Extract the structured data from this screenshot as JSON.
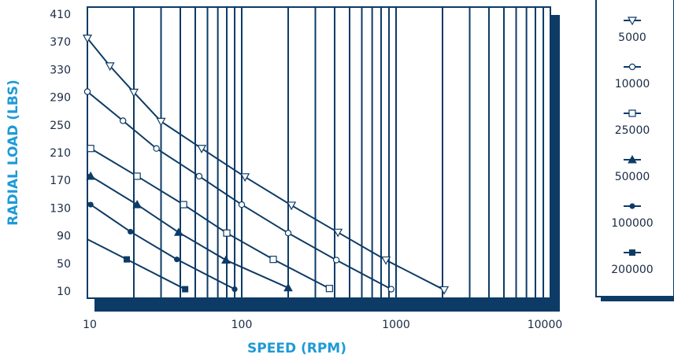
{
  "colors": {
    "line": "#0d3b66",
    "shadow": "#0d3b66",
    "title": "#1e9ad6",
    "text": "#1a2a44"
  },
  "chart_data": {
    "type": "line",
    "xlabel": "SPEED (RPM)",
    "ylabel": "RADIAL LOAD (LBS)",
    "x_scale": "log",
    "xlim": [
      10,
      10000
    ],
    "ylim": [
      0,
      420
    ],
    "x_ticks": [
      "10",
      "100",
      "1000",
      "10000"
    ],
    "y_ticks": [
      "10",
      "50",
      "90",
      "130",
      "170",
      "210",
      "250",
      "290",
      "330",
      "370",
      "410"
    ],
    "grid": "vertical",
    "legend_position": "right",
    "series": [
      {
        "name": "5000",
        "marker": "triangle-down-open",
        "x": [
          10,
          14,
          20,
          30,
          55,
          105,
          210,
          420,
          860,
          2050
        ],
        "y": [
          375,
          335,
          297,
          255,
          216,
          175,
          134,
          95,
          55,
          12
        ]
      },
      {
        "name": "10000",
        "marker": "circle-open",
        "x": [
          10,
          17,
          28,
          53,
          100,
          200,
          410,
          930
        ],
        "y": [
          298,
          256,
          216,
          176,
          135,
          94,
          55,
          13
        ]
      },
      {
        "name": "25000",
        "marker": "square-open",
        "x": [
          10.5,
          21,
          42,
          80,
          160,
          370
        ],
        "y": [
          216,
          176,
          135,
          94,
          56,
          14
        ]
      },
      {
        "name": "50000",
        "marker": "triangle-up-filled",
        "x": [
          10.5,
          21,
          39,
          79,
          200
        ],
        "y": [
          176,
          135,
          95,
          55,
          15
        ]
      },
      {
        "name": "100000",
        "marker": "circle-filled",
        "x": [
          10.5,
          19,
          38,
          90
        ],
        "y": [
          135,
          96,
          56,
          13
        ]
      },
      {
        "name": "200000",
        "marker": "square-filled",
        "x": [
          18,
          43
        ],
        "y": [
          56,
          13
        ]
      }
    ]
  }
}
